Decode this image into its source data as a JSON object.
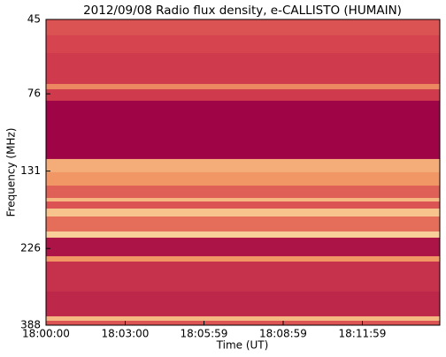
{
  "chart_data": {
    "type": "heatmap",
    "title": "2012/09/08  Radio flux density, e-CALLISTO (HUMAIN)",
    "x_label": "Time (UT)",
    "y_label": "Frequency (MHz)",
    "xlim": [
      0,
      895
    ],
    "xticks": [
      {
        "value": 0,
        "label": "18:00:00"
      },
      {
        "value": 180,
        "label": "18:03:00"
      },
      {
        "value": 359,
        "label": "18:05:59"
      },
      {
        "value": 539,
        "label": "18:08:59"
      },
      {
        "value": 719,
        "label": "18:11:59"
      }
    ],
    "ylim": [
      45,
      388
    ],
    "y_log": true,
    "y_inverted": true,
    "yticks": [
      45,
      76,
      131,
      226,
      388
    ],
    "y_bins": [
      45,
      50.3,
      57,
      70.9,
      73.6,
      79.8,
      120.3,
      132.1,
      145.1,
      158.3,
      162.3,
      170.6,
      180.4,
      200.5,
      209.4,
      238.7,
      247.8,
      306.2,
      364.5,
      376.1,
      388
    ],
    "values": [
      0.4,
      0.35,
      0.3,
      0.6,
      0.3,
      0.02,
      0.75,
      0.65,
      0.45,
      0.8,
      0.4,
      0.85,
      0.5,
      0.9,
      0.1,
      0.65,
      0.25,
      0.2,
      0.8,
      0.4
    ],
    "colormap": [
      "#9a0045",
      "#d5414e",
      "#f29a66",
      "#fbe6ad"
    ]
  }
}
